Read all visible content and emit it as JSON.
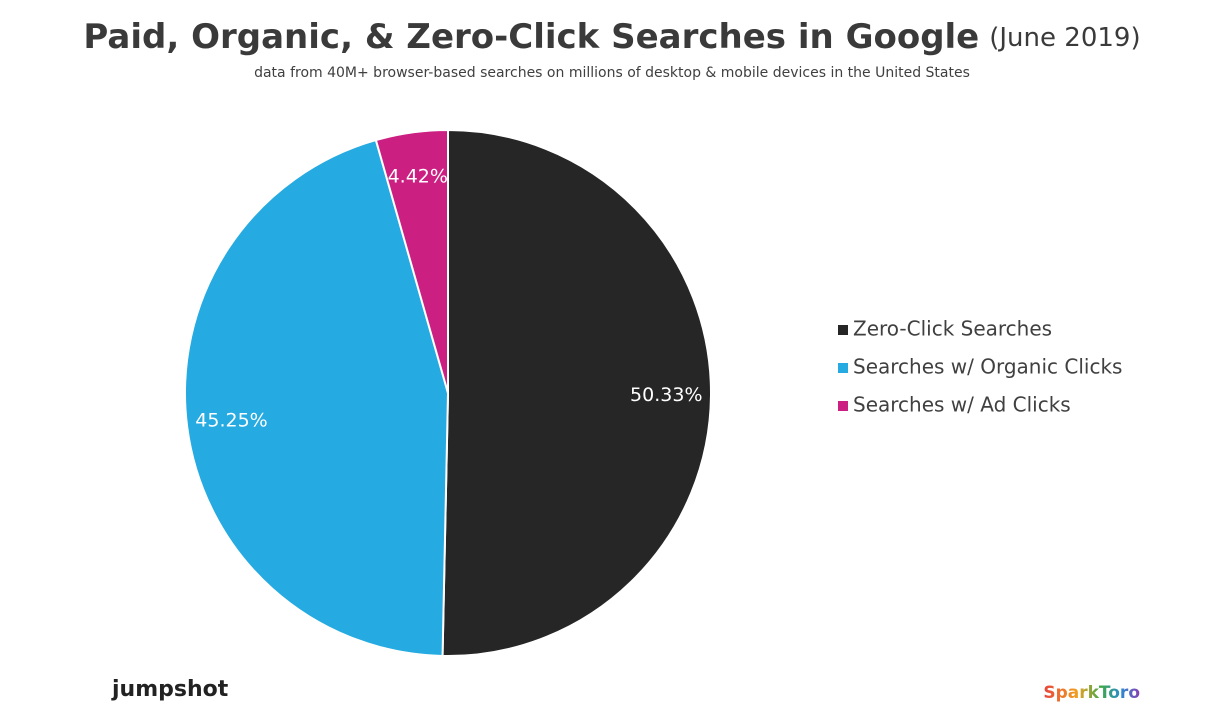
{
  "chart_data": {
    "type": "pie",
    "title": "Paid, Organic, & Zero-Click Searches in Google",
    "title_note": "(June 2019)",
    "subtitle": "data from 40M+ browser-based searches on millions of desktop & mobile devices in the United States",
    "categories": [
      "Zero-Click Searches",
      "Searches w/ Organic Clicks",
      "Searches w/ Ad Clicks"
    ],
    "values": [
      50.33,
      45.25,
      4.42
    ],
    "value_labels": [
      "50.33%",
      "45.25%",
      "4.42%"
    ],
    "colors": [
      "#262626",
      "#25aae1",
      "#cc1f82"
    ],
    "legend": "right"
  },
  "logos": [
    "jumpshot",
    "SparkToro"
  ]
}
